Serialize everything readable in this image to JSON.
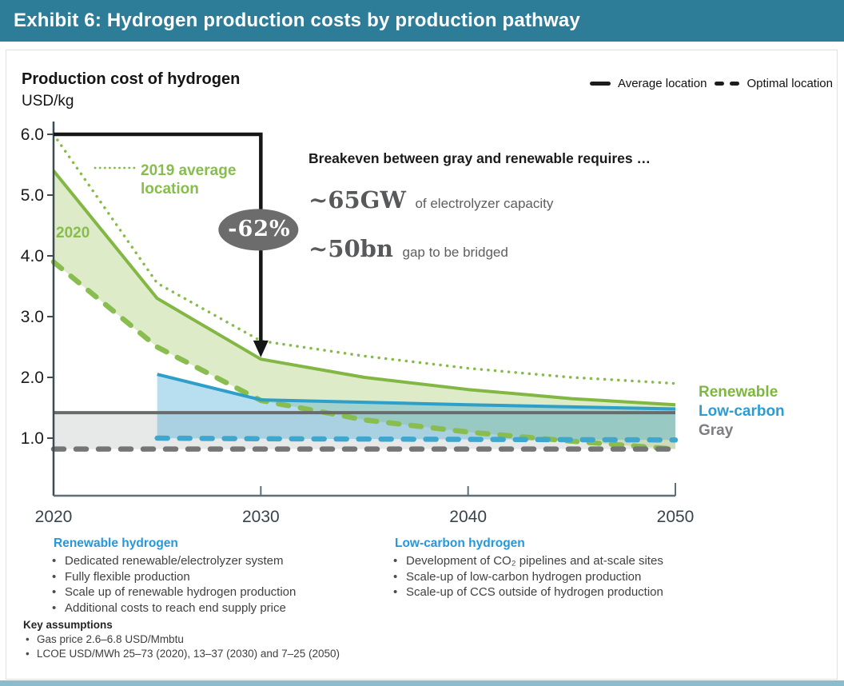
{
  "header": {
    "title": "Exhibit 6: Hydrogen production costs by production pathway"
  },
  "chart_header": {
    "title": "Production cost of hydrogen",
    "units": "USD/kg"
  },
  "legend": {
    "average_label": "Average location",
    "optimal_label": "Optimal location"
  },
  "annotations": {
    "series_2019_label": "2019 average location",
    "series_2020_label": "2020",
    "reduction_badge": "-62%",
    "breakeven_heading": "Breakeven between gray and renewable requires …",
    "breakeven_items": [
      {
        "value": "~65GW",
        "text": "of electrolyzer capacity"
      },
      {
        "value": "~50bn",
        "text": "gap to be bridged"
      }
    ]
  },
  "series_labels": {
    "renewable": "Renewable",
    "low_carbon": "Low-carbon",
    "gray": "Gray"
  },
  "footnotes": {
    "renewable": {
      "heading": "Renewable hydrogen",
      "bullets": [
        "Dedicated renewable/electrolyzer system",
        "Fully flexible production",
        "Scale up of renewable hydrogen production",
        "Additional costs to reach end supply price"
      ]
    },
    "low_carbon": {
      "heading": "Low-carbon hydrogen",
      "bullets": [
        "Development of CO₂ pipelines and at-scale sites",
        "Scale-up of low-carbon hydrogen production",
        "Scale-up of CCS outside of hydrogen production"
      ]
    },
    "assumptions": {
      "heading": "Key assumptions",
      "bullets": [
        "Gas price 2.6–6.8 USD/Mmbtu",
        "LCOE USD/MWh 25–73 (2020), 13–37 (2030) and 7–25 (2050)"
      ]
    }
  },
  "chart_data": {
    "type": "line",
    "title": "Production cost of hydrogen",
    "ylabel": "USD/kg",
    "x_range": [
      2020,
      2050
    ],
    "ylim": [
      0,
      6.0
    ],
    "x_ticks": [
      "2020",
      "2030",
      "2040",
      "2050"
    ],
    "y_ticks": [
      "6.0",
      "5.0",
      "4.0",
      "3.0",
      "2.0",
      "1.0"
    ],
    "grid": false,
    "legend_position": "top-right",
    "line_style_meaning": {
      "solid": "Average location",
      "dashed": "Optimal location",
      "dotted": "2019 average location"
    },
    "series": [
      {
        "id": "renewable_2019_average",
        "name": "Renewable — 2019 average location",
        "style": "dotted",
        "color": "#86bb4a",
        "points": [
          [
            2020,
            6.0
          ],
          [
            2025,
            3.55
          ],
          [
            2030,
            2.6
          ],
          [
            2035,
            2.35
          ],
          [
            2040,
            2.15
          ],
          [
            2045,
            2.0
          ],
          [
            2050,
            1.9
          ]
        ]
      },
      {
        "id": "renewable_average_2020",
        "name": "Renewable — average location (2020)",
        "style": "solid",
        "color": "#82b743",
        "points": [
          [
            2020,
            5.4
          ],
          [
            2025,
            3.3
          ],
          [
            2030,
            2.3
          ],
          [
            2035,
            2.0
          ],
          [
            2040,
            1.8
          ],
          [
            2045,
            1.65
          ],
          [
            2050,
            1.55
          ]
        ]
      },
      {
        "id": "renewable_optimal",
        "name": "Renewable — optimal location",
        "style": "dashed",
        "color": "#8abd4f",
        "points": [
          [
            2020,
            3.9
          ],
          [
            2025,
            2.5
          ],
          [
            2030,
            1.62
          ],
          [
            2035,
            1.3
          ],
          [
            2040,
            1.1
          ],
          [
            2045,
            0.95
          ],
          [
            2050,
            0.82
          ]
        ]
      },
      {
        "id": "lowcarbon_average",
        "name": "Low-carbon — average location",
        "style": "solid",
        "color": "#2d9fc9",
        "points": [
          [
            2025,
            2.05
          ],
          [
            2030,
            1.63
          ],
          [
            2040,
            1.55
          ],
          [
            2050,
            1.48
          ]
        ]
      },
      {
        "id": "lowcarbon_optimal",
        "name": "Low-carbon — optimal location",
        "style": "dashed",
        "color": "#3fa6cd",
        "points": [
          [
            2025,
            1.0
          ],
          [
            2030,
            0.99
          ],
          [
            2040,
            0.98
          ],
          [
            2050,
            0.97
          ]
        ]
      },
      {
        "id": "gray_average",
        "name": "Gray — average location",
        "style": "solid",
        "color": "#696b6b",
        "points": [
          [
            2020,
            1.42
          ],
          [
            2050,
            1.42
          ]
        ]
      },
      {
        "id": "gray_optimal",
        "name": "Gray — optimal location",
        "style": "dashed",
        "color": "#747676",
        "points": [
          [
            2020,
            0.82
          ],
          [
            2050,
            0.82
          ]
        ]
      }
    ],
    "bands": [
      {
        "between": [
          "gray_average",
          "gray_optimal"
        ],
        "fill": "rgba(158,162,162,0.25)"
      },
      {
        "between": [
          "renewable_average_2020",
          "renewable_optimal"
        ],
        "fill": "rgba(150,192,88,0.32)"
      },
      {
        "between": [
          "lowcarbon_average",
          "lowcarbon_optimal"
        ],
        "fill": "rgba(69,170,214,0.38)"
      }
    ],
    "annotation": {
      "label": "-62%",
      "from": [
        2020,
        6.0
      ],
      "corner": [
        2030,
        6.0
      ],
      "arrow_tip_value": 2.33,
      "badge_center_value": 4.43
    }
  }
}
